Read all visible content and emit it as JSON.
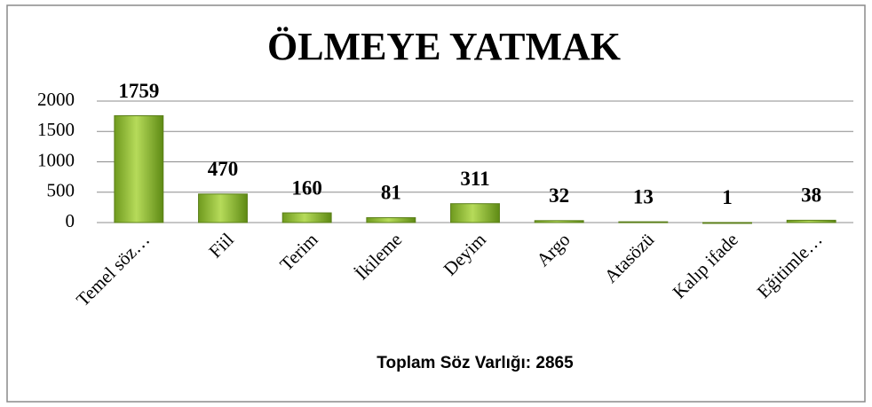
{
  "chart_data": {
    "type": "bar",
    "title": "ÖLMEYE YATMAK",
    "x_label": "Toplam Söz Varlığı: 2865",
    "categories": [
      "Temel söz…",
      "Fiil",
      "Terim",
      "İkileme",
      "Deyim",
      "Argo",
      "Atasözü",
      "Kalıp ifade",
      "Eğitimle…"
    ],
    "values": [
      1759,
      470,
      160,
      81,
      311,
      32,
      13,
      1,
      38
    ],
    "color": "#9bc43a",
    "ylim": [
      0,
      2000
    ],
    "yticks": [
      0,
      500,
      1000,
      1500,
      2000
    ],
    "grid": true
  }
}
